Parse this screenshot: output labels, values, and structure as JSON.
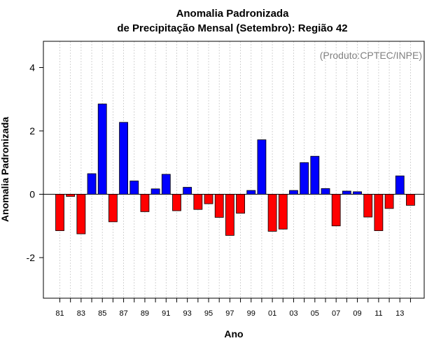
{
  "chart_data": {
    "type": "bar",
    "title": "Anomalia Padronizada",
    "subtitle": "de Precipitação Mensal (Setembro): Região 42",
    "xlabel": "Ano",
    "ylabel": "Anomalia Padronizada",
    "annotation": "(Produto:CPTEC/INPE)",
    "ylim": [
      -3.3,
      4.85
    ],
    "yticks": [
      "-2",
      "0",
      "2",
      "4"
    ],
    "ytick_values": [
      -2,
      0,
      2,
      4
    ],
    "grid": true,
    "colors": {
      "positive": "#0000ff",
      "negative": "#ff0000",
      "grid": "#c8c8c8",
      "annotation": "#808080"
    },
    "categories": [
      "81",
      "82",
      "83",
      "84",
      "85",
      "86",
      "87",
      "88",
      "89",
      "90",
      "91",
      "92",
      "93",
      "94",
      "95",
      "96",
      "97",
      "98",
      "99",
      "00",
      "01",
      "02",
      "03",
      "04",
      "05",
      "06",
      "07",
      "08",
      "09",
      "10",
      "11",
      "12",
      "13",
      "14"
    ],
    "xtick_labels": [
      "81",
      "83",
      "85",
      "87",
      "89",
      "91",
      "93",
      "95",
      "97",
      "99",
      "01",
      "03",
      "05",
      "07",
      "09",
      "11",
      "13"
    ],
    "values": [
      -1.15,
      -0.07,
      -1.25,
      0.65,
      2.85,
      -0.87,
      2.27,
      0.42,
      -0.55,
      0.17,
      0.63,
      -0.52,
      0.22,
      -0.48,
      -0.3,
      -0.73,
      -1.3,
      -0.6,
      0.12,
      1.72,
      -1.17,
      -1.1,
      0.12,
      1.0,
      1.2,
      0.18,
      -1.0,
      0.1,
      0.08,
      -0.72,
      -1.15,
      -0.45,
      0.58,
      -0.35
    ]
  }
}
